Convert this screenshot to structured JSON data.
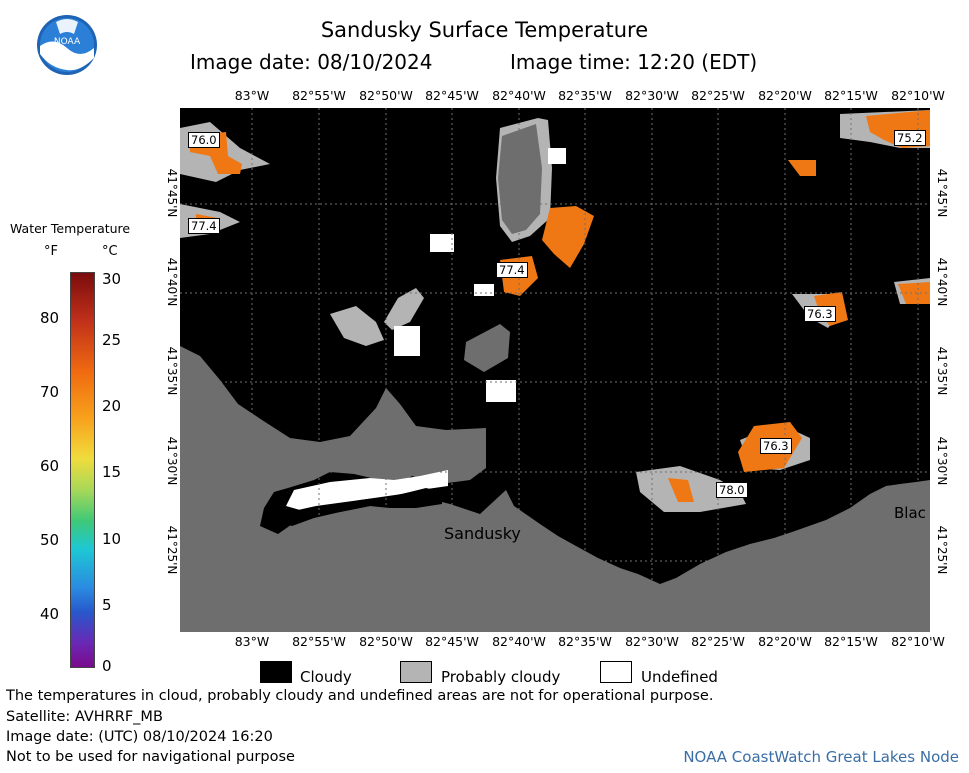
{
  "header": {
    "title": "Sandusky Surface Temperature",
    "image_date": "Image date: 08/10/2024",
    "image_time": "Image time: 12:20 (EDT)"
  },
  "logo": {
    "text": "NOAA",
    "icon": "noaa-logo-icon"
  },
  "scale": {
    "title": "Water Temperature",
    "unit_f": "°F",
    "unit_c": "°C",
    "f_ticks": [
      "80",
      "70",
      "60",
      "50",
      "40"
    ],
    "c_ticks": [
      "30",
      "25",
      "20",
      "15",
      "10",
      "5",
      "0"
    ]
  },
  "axes": {
    "top_lon": [
      "83°W",
      "82°55'W",
      "82°50'W",
      "82°45'W",
      "82°40'W",
      "82°35'W",
      "82°30'W",
      "82°25'W",
      "82°20'W",
      "82°15'W",
      "82°10'W"
    ],
    "bottom_lon": [
      "83°W",
      "82°55'W",
      "82°50'W",
      "82°45'W",
      "82°40'W",
      "82°35'W",
      "82°30'W",
      "82°25'W",
      "82°20'W",
      "82°15'W",
      "82°10'W"
    ],
    "left_lat": [
      "41°45'N",
      "41°40'N",
      "41°35'N",
      "41°30'N",
      "41°25'N"
    ],
    "right_lat": [
      "41°45'N",
      "41°40'N",
      "41°35'N",
      "41°30'N",
      "41°25'N"
    ]
  },
  "map": {
    "place_labels": [
      "Sandusky",
      "Blac"
    ],
    "temp_labels": [
      "76.0",
      "75.2",
      "77.4",
      "77.4",
      "76.3",
      "76.3",
      "78.0"
    ],
    "colors": {
      "cloudy": "#000000",
      "probably_cloudy": "#b4b4b4",
      "land": "#6e6e6e",
      "warm_water": "#f07814",
      "undefined": "#ffffff"
    }
  },
  "legend": {
    "cloudy": "Cloudy",
    "probably_cloudy": "Probably cloudy",
    "undefined": "Undefined"
  },
  "footer": {
    "line1": "The temperatures in cloud, probably cloudy and undefined areas are not for operational purpose.",
    "line2": "Satellite: AVHRRF_MB",
    "line3": "Image date: (UTC) 08/10/2024  16:20",
    "line4": "Not to be used for navigational purpose",
    "credit": "NOAA CoastWatch Great Lakes Node"
  }
}
